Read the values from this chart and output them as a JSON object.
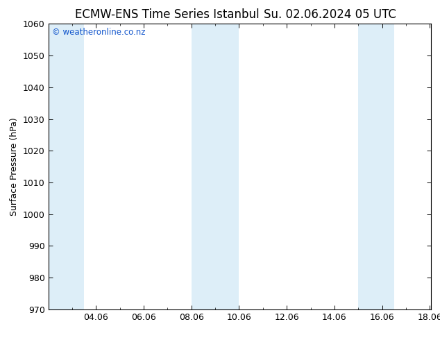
{
  "title_left": "ECMW-ENS Time Series Istanbul",
  "title_right": "Su. 02.06.2024 05 UTC",
  "ylabel": "Surface Pressure (hPa)",
  "ylim": [
    970,
    1060
  ],
  "yticks": [
    970,
    980,
    990,
    1000,
    1010,
    1020,
    1030,
    1040,
    1050,
    1060
  ],
  "xlim": [
    2.0,
    18.06
  ],
  "xtick_labels": [
    "04.06",
    "06.06",
    "08.06",
    "10.06",
    "12.06",
    "14.06",
    "16.06",
    "18.06"
  ],
  "xtick_positions": [
    4,
    6,
    8,
    10,
    12,
    14,
    16,
    18
  ],
  "shaded_bands": [
    {
      "x_start": 2.0,
      "x_end": 3.5,
      "color": "#ddeef8"
    },
    {
      "x_start": 8.0,
      "x_end": 10.0,
      "color": "#ddeef8"
    },
    {
      "x_start": 15.0,
      "x_end": 16.5,
      "color": "#ddeef8"
    }
  ],
  "watermark": "© weatheronline.co.nz",
  "watermark_color": "#1155cc",
  "background_color": "#ffffff",
  "plot_bg_color": "#ffffff",
  "title_fontsize": 12,
  "axis_label_fontsize": 9,
  "tick_fontsize": 9
}
